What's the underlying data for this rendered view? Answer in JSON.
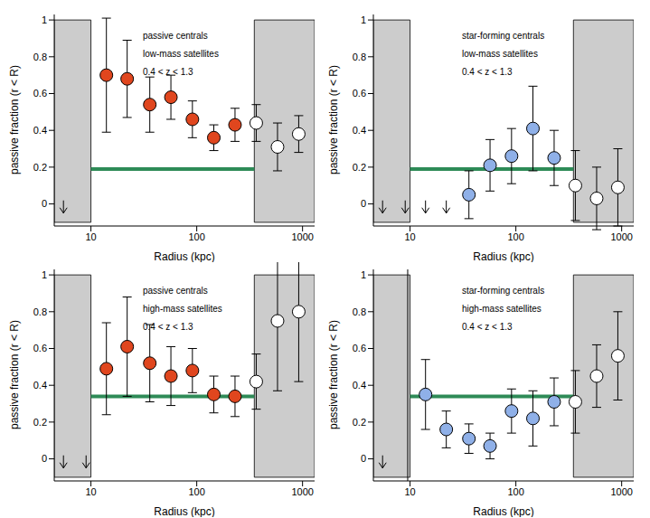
{
  "chart_data": [
    {
      "type": "scatter",
      "annotations": [
        "passive centrals",
        "low-mass satellites",
        "0.4 < z < 1.3"
      ],
      "x_label": "Radius (kpc)",
      "y_label": "passive fraction (r < R)",
      "log": "x",
      "xlim": [
        4.5,
        1300
      ],
      "xticks": [
        10,
        100,
        1000
      ],
      "ylim": [
        -0.12,
        1.03
      ],
      "yticks": [
        0,
        0.2,
        0.4,
        0.6,
        0.8,
        1
      ],
      "marker": "circle",
      "x": [
        14,
        22,
        36,
        57,
        91,
        145,
        230,
        365,
        580,
        920
      ],
      "values": [
        0.7,
        0.68,
        0.54,
        0.58,
        0.46,
        0.36,
        0.43,
        0.44,
        0.31,
        0.38
      ],
      "errors": [
        0.31,
        0.21,
        0.15,
        0.12,
        0.1,
        0.07,
        0.09,
        0.1,
        0.13,
        0.1
      ],
      "colors": [
        "#e0461e",
        "#e0461e",
        "#e0461e",
        "#e0461e",
        "#e0461e",
        "#e0461e",
        "#e0461e",
        "#ffffff",
        "#ffffff",
        "#ffffff"
      ],
      "upper_limits": {
        "x": [
          5.5
        ],
        "y": -0.05
      },
      "shaded_ranges": [
        [
          4.5,
          10
        ],
        [
          350,
          1300
        ]
      ],
      "shaded_y": [
        -0.1,
        1.0
      ],
      "reference_line": {
        "value": 0.19,
        "x": [
          10,
          350
        ],
        "color": "#2e8b57"
      }
    },
    {
      "type": "scatter",
      "annotations": [
        "star-forming centrals",
        "low-mass satellites",
        "0.4 < z < 1.3"
      ],
      "x_label": "Radius (kpc)",
      "y_label": "passive fraction (r < R)",
      "log": "x",
      "xlim": [
        4.5,
        1300
      ],
      "xticks": [
        10,
        100,
        1000
      ],
      "ylim": [
        -0.12,
        1.03
      ],
      "yticks": [
        0,
        0.2,
        0.4,
        0.6,
        0.8,
        1
      ],
      "marker": "circle",
      "x": [
        36,
        57,
        91,
        145,
        230,
        365,
        580,
        920
      ],
      "values": [
        0.05,
        0.21,
        0.26,
        0.41,
        0.25,
        0.1,
        0.03,
        0.09
      ],
      "errors": [
        0.13,
        0.14,
        0.15,
        0.23,
        0.15,
        0.19,
        0.17,
        0.21
      ],
      "colors": [
        "#8fb0e8",
        "#8fb0e8",
        "#8fb0e8",
        "#8fb0e8",
        "#8fb0e8",
        "#ffffff",
        "#ffffff",
        "#ffffff"
      ],
      "upper_limits": {
        "x": [
          5.5,
          9,
          14,
          22
        ],
        "y": -0.05
      },
      "shaded_ranges": [
        [
          4.5,
          10
        ],
        [
          350,
          1300
        ]
      ],
      "shaded_y": [
        -0.1,
        1.0
      ],
      "reference_line": {
        "value": 0.19,
        "x": [
          10,
          350
        ],
        "color": "#2e8b57"
      }
    },
    {
      "type": "scatter",
      "annotations": [
        "passive centrals",
        "high-mass satellites",
        "0.4 < z < 1.3"
      ],
      "x_label": "Radius (kpc)",
      "y_label": "passive fraction (r < R)",
      "log": "x",
      "xlim": [
        4.5,
        1300
      ],
      "xticks": [
        10,
        100,
        1000
      ],
      "ylim": [
        -0.12,
        1.03
      ],
      "yticks": [
        0,
        0.2,
        0.4,
        0.6,
        0.8,
        1
      ],
      "marker": "circle",
      "x": [
        14,
        22,
        36,
        57,
        91,
        145,
        230,
        365,
        580,
        920
      ],
      "values": [
        0.49,
        0.61,
        0.52,
        0.45,
        0.48,
        0.35,
        0.34,
        0.42,
        0.75,
        0.8
      ],
      "errors": [
        0.25,
        0.27,
        0.21,
        0.16,
        0.12,
        0.1,
        0.11,
        0.15,
        0.38,
        0.38
      ],
      "colors": [
        "#e0461e",
        "#e0461e",
        "#e0461e",
        "#e0461e",
        "#e0461e",
        "#e0461e",
        "#e0461e",
        "#ffffff",
        "#ffffff",
        "#ffffff"
      ],
      "upper_limits": {
        "x": [
          5.5,
          9
        ],
        "y": -0.05
      },
      "shaded_ranges": [
        [
          4.5,
          10
        ],
        [
          350,
          1300
        ]
      ],
      "shaded_y": [
        -0.1,
        1.0
      ],
      "reference_line": {
        "value": 0.34,
        "x": [
          10,
          350
        ],
        "color": "#2e8b57"
      }
    },
    {
      "type": "scatter",
      "annotations": [
        "star-forming centrals",
        "high-mass satellites",
        "0.4 < z < 1.3"
      ],
      "x_label": "Radius (kpc)",
      "y_label": "passive fraction (r < R)",
      "log": "x",
      "xlim": [
        4.5,
        1300
      ],
      "xticks": [
        10,
        100,
        1000
      ],
      "ylim": [
        -0.12,
        1.03
      ],
      "yticks": [
        0,
        0.2,
        0.4,
        0.6,
        0.8,
        1
      ],
      "marker": "circle",
      "x": [
        14,
        22,
        36,
        57,
        91,
        145,
        230,
        365,
        580,
        920
      ],
      "values": [
        0.35,
        0.16,
        0.11,
        0.07,
        0.26,
        0.22,
        0.31,
        0.31,
        0.45,
        0.56
      ],
      "errors": [
        0.19,
        0.1,
        0.08,
        0.07,
        0.12,
        0.15,
        0.13,
        0.17,
        0.17,
        0.24
      ],
      "colors": [
        "#8fb0e8",
        "#8fb0e8",
        "#8fb0e8",
        "#8fb0e8",
        "#8fb0e8",
        "#8fb0e8",
        "#8fb0e8",
        "#ffffff",
        "#ffffff",
        "#ffffff"
      ],
      "upper_limits": {
        "x": [
          5.5
        ],
        "y": -0.05
      },
      "vertical_line": 9.5,
      "shaded_ranges": [
        [
          4.5,
          10
        ],
        [
          350,
          1300
        ]
      ],
      "shaded_y": [
        -0.1,
        1.0
      ],
      "reference_line": {
        "value": 0.34,
        "x": [
          10,
          350
        ],
        "color": "#2e8b57"
      }
    }
  ]
}
